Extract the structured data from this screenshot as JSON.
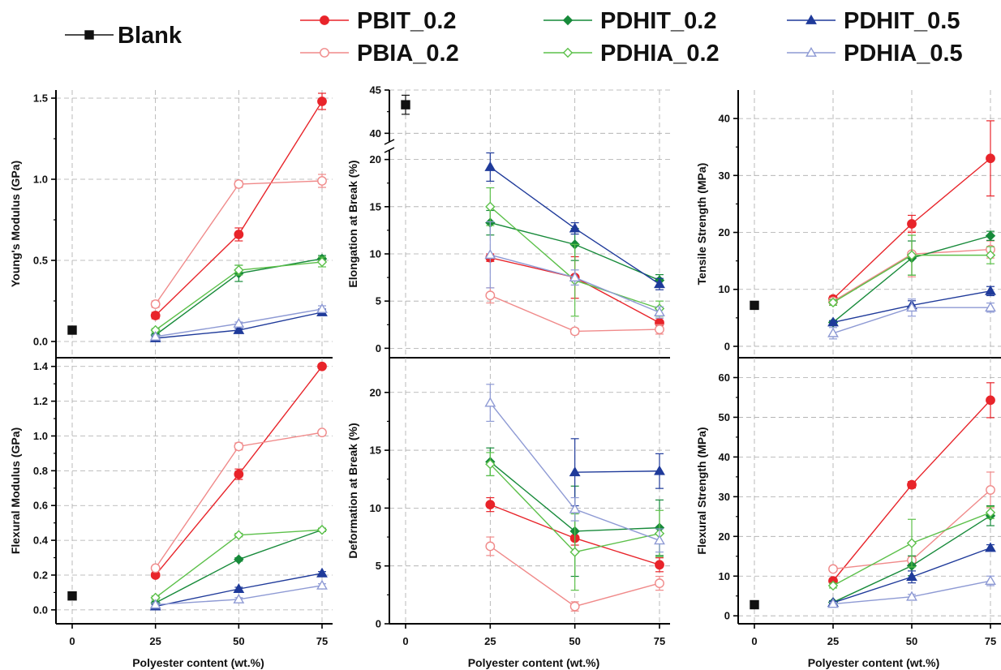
{
  "colors": {
    "Blank": "#111111",
    "PBIT_0.2": "#e8242a",
    "PBIA_0.2": "#f08a8a",
    "PDHIT_0.2": "#178a3a",
    "PDHIA_0.2": "#5cc04a",
    "PDHIT_0.5": "#1f3a9a",
    "PDHIA_0.5": "#8e9ad4"
  },
  "legend": [
    "Blank",
    "PBIT_0.2",
    "PBIA_0.2",
    "PDHIT_0.2",
    "PDHIA_0.2",
    "PDHIT_0.5",
    "PDHIA_0.5"
  ],
  "markers": {
    "Blank": "square",
    "PBIT_0.2": "circle-filled",
    "PBIA_0.2": "circle-open",
    "PDHIT_0.2": "diamond-filled",
    "PDHIA_0.2": "diamond-open",
    "PDHIT_0.5": "triangle-filled",
    "PDHIA_0.5": "triangle-open"
  },
  "chart_data": [
    {
      "type": "line",
      "ylabel": "Young's Modulus (GPa)",
      "xlabel": "",
      "x": [
        25,
        50,
        75
      ],
      "xticks": [
        0,
        25,
        50,
        75
      ],
      "xlim": [
        -5,
        80
      ],
      "ylim": [
        -0.1,
        1.55
      ],
      "yticks": [
        0.0,
        0.5,
        1.0,
        1.5
      ],
      "ytick_labels": [
        "0.0",
        "0.5",
        "1.0",
        "1.5"
      ],
      "blank": {
        "x": 0,
        "y": 0.07,
        "err": 0.01
      },
      "series": [
        {
          "name": "PBIT_0.2",
          "values": [
            0.16,
            0.66,
            1.48
          ],
          "err": [
            0.02,
            0.04,
            0.05
          ]
        },
        {
          "name": "PBIA_0.2",
          "values": [
            0.23,
            0.97,
            0.99
          ],
          "err": [
            0.02,
            0.02,
            0.04
          ]
        },
        {
          "name": "PDHIT_0.2",
          "values": [
            0.04,
            0.42,
            0.51
          ],
          "err": [
            0.01,
            0.05,
            0.02
          ]
        },
        {
          "name": "PDHIA_0.2",
          "values": [
            0.07,
            0.44,
            0.49
          ],
          "err": [
            0.01,
            0.03,
            0.03
          ]
        },
        {
          "name": "PDHIT_0.5",
          "values": [
            0.02,
            0.07,
            0.18
          ],
          "err": [
            0.01,
            0.01,
            0.02
          ]
        },
        {
          "name": "PDHIA_0.5",
          "values": [
            0.03,
            0.11,
            0.2
          ],
          "err": [
            0.01,
            0.01,
            0.02
          ]
        }
      ]
    },
    {
      "type": "line",
      "ylabel": "Elongation at Break (%)",
      "xlabel": "",
      "x": [
        25,
        50,
        75
      ],
      "xticks": [
        0,
        25,
        50,
        75
      ],
      "xlim": [
        -5,
        80
      ],
      "broken_axis": {
        "lower": [
          -1,
          21
        ],
        "upper": [
          39,
          45
        ],
        "lower_frac": 0.8
      },
      "yticks": [
        0,
        5,
        10,
        15,
        20,
        40,
        45
      ],
      "ytick_labels": [
        "0",
        "5",
        "10",
        "15",
        "20",
        "40",
        "45"
      ],
      "blank": {
        "x": 0,
        "y": 43.3,
        "err": 1.1
      },
      "series": [
        {
          "name": "PBIT_0.2",
          "values": [
            9.6,
            7.5,
            2.7
          ],
          "err": [
            0.4,
            2.2,
            0.5
          ]
        },
        {
          "name": "PBIA_0.2",
          "values": [
            5.6,
            1.8,
            2.0
          ],
          "err": [
            0.8,
            0.3,
            0.5
          ]
        },
        {
          "name": "PDHIT_0.2",
          "values": [
            13.3,
            11.0,
            7.2
          ],
          "err": [
            1.3,
            1.7,
            0.6
          ]
        },
        {
          "name": "PDHIA_0.2",
          "values": [
            15.0,
            7.2,
            4.2
          ],
          "err": [
            2.0,
            3.8,
            0.8
          ]
        },
        {
          "name": "PDHIT_0.5",
          "values": [
            19.2,
            12.7,
            6.8
          ],
          "err": [
            1.5,
            0.6,
            0.6
          ]
        },
        {
          "name": "PDHIA_0.5",
          "values": [
            9.9,
            7.5,
            3.8
          ],
          "err": [
            3.5,
            0.8,
            0.6
          ]
        }
      ]
    },
    {
      "type": "line",
      "ylabel": "Tensile Strength (MPa)",
      "xlabel": "",
      "x": [
        25,
        50,
        75
      ],
      "xticks": [
        0,
        25,
        50,
        75
      ],
      "xlim": [
        -5,
        80
      ],
      "ylim": [
        -2,
        45
      ],
      "yticks": [
        0,
        10,
        20,
        30,
        40
      ],
      "ytick_labels": [
        "0",
        "10",
        "20",
        "30",
        "40"
      ],
      "blank": {
        "x": 0,
        "y": 7.2,
        "err": 0.5
      },
      "series": [
        {
          "name": "PBIT_0.2",
          "values": [
            8.3,
            21.5,
            33.0
          ],
          "err": [
            0.5,
            1.5,
            6.6
          ]
        },
        {
          "name": "PBIA_0.2",
          "values": [
            7.9,
            16.2,
            17.0
          ],
          "err": [
            0.5,
            4.0,
            1.5
          ]
        },
        {
          "name": "PDHIT_0.2",
          "values": [
            4.2,
            15.5,
            19.4
          ],
          "err": [
            0.3,
            3.0,
            0.8
          ]
        },
        {
          "name": "PDHIA_0.2",
          "values": [
            7.7,
            16.0,
            16.0
          ],
          "err": [
            0.5,
            3.5,
            1.5
          ]
        },
        {
          "name": "PDHIT_0.5",
          "values": [
            4.2,
            7.2,
            9.7
          ],
          "err": [
            0.3,
            0.8,
            0.8
          ]
        },
        {
          "name": "PDHIA_0.5",
          "values": [
            2.3,
            6.8,
            6.8
          ],
          "err": [
            1.0,
            1.5,
            0.8
          ]
        }
      ]
    },
    {
      "type": "line",
      "ylabel": "Flexural Modulus (GPa)",
      "xlabel": "Polyester content (wt.%)",
      "x": [
        25,
        50,
        75
      ],
      "xticks": [
        0,
        25,
        50,
        75
      ],
      "xlim": [
        -5,
        80
      ],
      "ylim": [
        -0.08,
        1.45
      ],
      "yticks": [
        0.0,
        0.2,
        0.4,
        0.6,
        0.8,
        1.0,
        1.2,
        1.4
      ],
      "ytick_labels": [
        "0.0",
        "0.2",
        "0.4",
        "0.6",
        "0.8",
        "1.0",
        "1.2",
        "1.4"
      ],
      "blank": {
        "x": 0,
        "y": 0.08,
        "err": 0.01
      },
      "series": [
        {
          "name": "PBIT_0.2",
          "values": [
            0.2,
            0.78,
            1.4
          ],
          "err": [
            0.01,
            0.03,
            0.01
          ]
        },
        {
          "name": "PBIA_0.2",
          "values": [
            0.24,
            0.94,
            1.02
          ],
          "err": [
            0.01,
            0.02,
            0.01
          ]
        },
        {
          "name": "PDHIT_0.2",
          "values": [
            0.04,
            0.29,
            0.46
          ],
          "err": [
            0.01,
            0.01,
            0.01
          ]
        },
        {
          "name": "PDHIA_0.2",
          "values": [
            0.07,
            0.43,
            0.46
          ],
          "err": [
            0.01,
            0.01,
            0.01
          ]
        },
        {
          "name": "PDHIT_0.5",
          "values": [
            0.02,
            0.12,
            0.21
          ],
          "err": [
            0.01,
            0.01,
            0.01
          ]
        },
        {
          "name": "PDHIA_0.5",
          "values": [
            0.03,
            0.06,
            0.14
          ],
          "err": [
            0.01,
            0.01,
            0.01
          ]
        }
      ]
    },
    {
      "type": "line",
      "ylabel": "Deformation at Break (%)",
      "xlabel": "Polyester content (wt.%)",
      "x": [
        25,
        50,
        75
      ],
      "xticks": [
        0,
        25,
        50,
        75
      ],
      "xlim": [
        -5,
        80
      ],
      "ylim": [
        0,
        23
      ],
      "yticks": [
        0,
        5,
        10,
        15,
        20
      ],
      "ytick_labels": [
        "0",
        "5",
        "10",
        "15",
        "20"
      ],
      "series": [
        {
          "name": "PBIT_0.2",
          "values": [
            10.3,
            7.4,
            5.1
          ],
          "err": [
            0.6,
            0.6,
            0.6
          ]
        },
        {
          "name": "PBIA_0.2",
          "values": [
            6.7,
            1.5,
            3.5
          ],
          "err": [
            0.8,
            0.4,
            0.6
          ]
        },
        {
          "name": "PDHIT_0.2",
          "values": [
            14.0,
            8.0,
            8.3
          ],
          "err": [
            1.2,
            3.9,
            2.4
          ]
        },
        {
          "name": "PDHIA_0.2",
          "values": [
            13.8,
            6.2,
            7.8
          ],
          "err": [
            1.0,
            3.3,
            2.0
          ]
        },
        {
          "name": "PDHIT_0.5",
          "values": [
            null,
            13.1,
            13.2
          ],
          "err": [
            0,
            2.9,
            1.5
          ]
        },
        {
          "name": "PDHIA_0.5",
          "values": [
            19.1,
            9.9,
            7.2
          ],
          "err": [
            1.6,
            1.0,
            1.0
          ]
        }
      ]
    },
    {
      "type": "line",
      "ylabel": "Flexural Strength (MPa)",
      "xlabel": "Polyester content (wt.%)",
      "x": [
        25,
        50,
        75
      ],
      "xticks": [
        0,
        25,
        50,
        75
      ],
      "xlim": [
        -5,
        80
      ],
      "ylim": [
        -2,
        65
      ],
      "yticks": [
        0,
        10,
        20,
        30,
        40,
        50,
        60
      ],
      "ytick_labels": [
        "0",
        "10",
        "20",
        "30",
        "40",
        "50",
        "60"
      ],
      "blank": {
        "x": 0,
        "y": 2.8,
        "err": 0.4
      },
      "series": [
        {
          "name": "PBIT_0.2",
          "values": [
            8.8,
            33.0,
            54.3
          ],
          "err": [
            0.6,
            0.8,
            4.4
          ]
        },
        {
          "name": "PBIA_0.2",
          "values": [
            11.8,
            14.0,
            31.7
          ],
          "err": [
            0.6,
            1.0,
            4.5
          ]
        },
        {
          "name": "PDHIT_0.2",
          "values": [
            3.4,
            12.6,
            25.2
          ],
          "err": [
            0.4,
            2.5,
            2.5
          ]
        },
        {
          "name": "PDHIA_0.2",
          "values": [
            7.6,
            18.3,
            26.0
          ],
          "err": [
            0.6,
            6.0,
            1.5
          ]
        },
        {
          "name": "PDHIT_0.5",
          "values": [
            3.3,
            9.8,
            17.1
          ],
          "err": [
            0.4,
            1.5,
            0.8
          ]
        },
        {
          "name": "PDHIA_0.5",
          "values": [
            3.0,
            4.8,
            8.8
          ],
          "err": [
            0.4,
            0.6,
            1.2
          ]
        }
      ]
    }
  ]
}
